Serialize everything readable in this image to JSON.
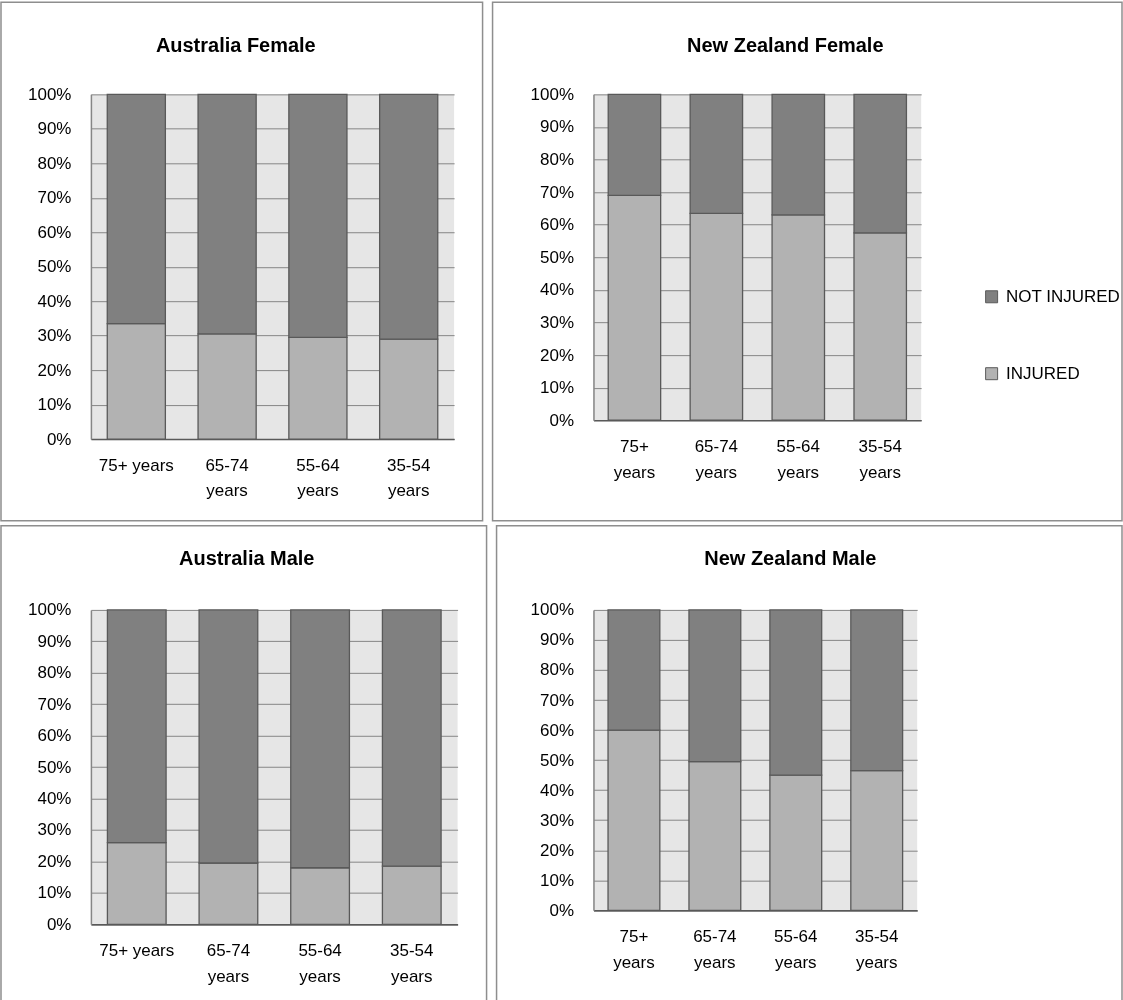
{
  "chart_data": [
    {
      "type": "bar",
      "title": "Australia Female",
      "categories": [
        "75+ years",
        "65-74 years",
        "55-64 years",
        "35-54 years"
      ],
      "stacked": true,
      "series": [
        {
          "color": "#b2b2b2",
          "values": [
            33.5,
            30.5,
            29.5,
            29
          ]
        },
        {
          "color": "#808080",
          "values": [
            66.5,
            69.5,
            70.5,
            71
          ]
        }
      ],
      "ylim": [
        0,
        100
      ],
      "yticks": [
        {
          "value": 0,
          "label": "0%"
        },
        {
          "value": 10,
          "label": "10%"
        },
        {
          "value": 20,
          "label": "20%"
        },
        {
          "value": 30,
          "label": "30%"
        },
        {
          "value": 40,
          "label": "40%"
        },
        {
          "value": 50,
          "label": "50%"
        },
        {
          "value": 60,
          "label": "60%"
        },
        {
          "value": 70,
          "label": "70%"
        },
        {
          "value": 80,
          "label": "80%"
        },
        {
          "value": 90,
          "label": "90%"
        },
        {
          "value": 100,
          "label": "100%"
        }
      ],
      "grid": "y",
      "legend": false
    },
    {
      "type": "bar",
      "title": "New Zealand Female",
      "categories": [
        "75+ years",
        "65-74 years",
        "55-64 years",
        "35-54 years"
      ],
      "stacked": true,
      "series": [
        {
          "name": "INJURED",
          "color": "#b2b2b2",
          "values": [
            69,
            63.5,
            63,
            57.5
          ]
        },
        {
          "name": "NOT INJURED",
          "color": "#808080",
          "values": [
            31,
            36.5,
            37,
            42.5
          ]
        }
      ],
      "ylim": [
        0,
        100
      ],
      "yticks": [
        {
          "value": 0,
          "label": "0%"
        },
        {
          "value": 10,
          "label": "10%"
        },
        {
          "value": 20,
          "label": "20%"
        },
        {
          "value": 30,
          "label": "30%"
        },
        {
          "value": 40,
          "label": "40%"
        },
        {
          "value": 50,
          "label": "50%"
        },
        {
          "value": 60,
          "label": "60%"
        },
        {
          "value": 70,
          "label": "70%"
        },
        {
          "value": 80,
          "label": "80%"
        },
        {
          "value": 90,
          "label": "90%"
        },
        {
          "value": 100,
          "label": "100%"
        }
      ],
      "grid": "y",
      "legend": "right"
    },
    {
      "type": "bar",
      "title": "Australia Male",
      "categories": [
        "75+ years",
        "65-74 years",
        "55-64 years",
        "35-54 years"
      ],
      "stacked": true,
      "series": [
        {
          "color": "#b2b2b2",
          "values": [
            26,
            19.5,
            18,
            18.5
          ]
        },
        {
          "color": "#808080",
          "values": [
            74,
            80.5,
            82,
            81.5
          ]
        }
      ],
      "ylim": [
        0,
        100
      ],
      "yticks": [
        {
          "value": 0,
          "label": "0%"
        },
        {
          "value": 10,
          "label": "10%"
        },
        {
          "value": 20,
          "label": "20%"
        },
        {
          "value": 30,
          "label": "30%"
        },
        {
          "value": 40,
          "label": "40%"
        },
        {
          "value": 50,
          "label": "50%"
        },
        {
          "value": 60,
          "label": "60%"
        },
        {
          "value": 70,
          "label": "70%"
        },
        {
          "value": 80,
          "label": "80%"
        },
        {
          "value": 90,
          "label": "90%"
        },
        {
          "value": 100,
          "label": "100%"
        }
      ],
      "grid": "y",
      "legend": false
    },
    {
      "type": "bar",
      "title": "New Zealand Male",
      "categories": [
        "75+ years",
        "65-74 years",
        "55-64 years",
        "35-54 years"
      ],
      "stacked": true,
      "series": [
        {
          "color": "#b2b2b2",
          "values": [
            60,
            49.5,
            45,
            46.5
          ]
        },
        {
          "color": "#808080",
          "values": [
            40,
            50.5,
            55,
            53.5
          ]
        }
      ],
      "ylim": [
        0,
        100
      ],
      "yticks": [
        {
          "value": 0,
          "label": "0%"
        },
        {
          "value": 10,
          "label": "10%"
        },
        {
          "value": 20,
          "label": "20%"
        },
        {
          "value": 30,
          "label": "30%"
        },
        {
          "value": 40,
          "label": "40%"
        },
        {
          "value": 50,
          "label": "50%"
        },
        {
          "value": 60,
          "label": "60%"
        },
        {
          "value": 70,
          "label": "70%"
        },
        {
          "value": 80,
          "label": "80%"
        },
        {
          "value": 90,
          "label": "90%"
        },
        {
          "value": 100,
          "label": "100%"
        }
      ],
      "grid": "y",
      "legend": false
    }
  ]
}
